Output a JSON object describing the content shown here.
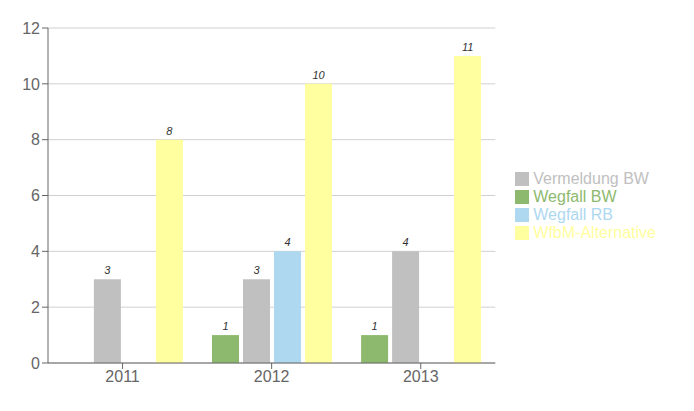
{
  "chart_data": {
    "type": "bar",
    "categories": [
      "2011",
      "2012",
      "2013"
    ],
    "series": [
      {
        "name": "Wegfall BW",
        "color": "#8db96e",
        "values": [
          0,
          1,
          1
        ]
      },
      {
        "name": "Vermeldung BW",
        "color": "#c0c0c0",
        "values": [
          3,
          3,
          4
        ]
      },
      {
        "name": "Wegfall RB",
        "color": "#add8f0",
        "values": [
          0,
          4,
          0
        ]
      },
      {
        "name": "WfbM-Alternative",
        "color": "#ffffa0",
        "values": [
          8,
          10,
          11
        ]
      }
    ],
    "ylim": [
      0,
      12
    ],
    "yticks": [
      0,
      2,
      4,
      6,
      8,
      10,
      12
    ],
    "grid": true,
    "legend": "right",
    "data_labels": true
  }
}
